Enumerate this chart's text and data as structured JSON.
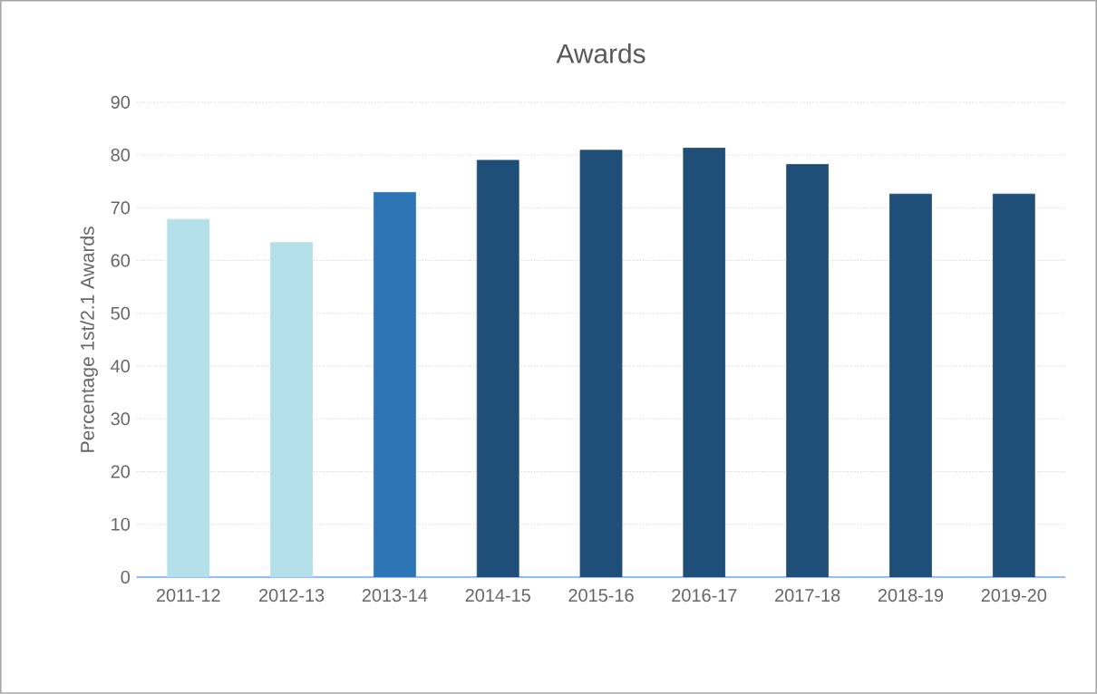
{
  "chart_data": {
    "type": "bar",
    "title": "Awards",
    "ylabel": "Percentage 1st/2.1 Awards",
    "categories": [
      "2011-12",
      "2012-13",
      "2013-14",
      "2014-15",
      "2015-16",
      "2016-17",
      "2017-18",
      "2018-19",
      "2019-20"
    ],
    "values": [
      67.8,
      63.4,
      72.9,
      79.0,
      80.9,
      81.3,
      78.2,
      72.6,
      72.6
    ],
    "colors": [
      "#b4e0ea",
      "#b4e0ea",
      "#2e75b6",
      "#1f4e79",
      "#1f4e79",
      "#1f4e79",
      "#1f4e79",
      "#1f4e79",
      "#1f4e79"
    ],
    "ylim": [
      0,
      90
    ],
    "yticks": [
      0,
      10,
      20,
      30,
      40,
      50,
      60,
      70,
      80,
      90
    ],
    "grid": "y"
  }
}
